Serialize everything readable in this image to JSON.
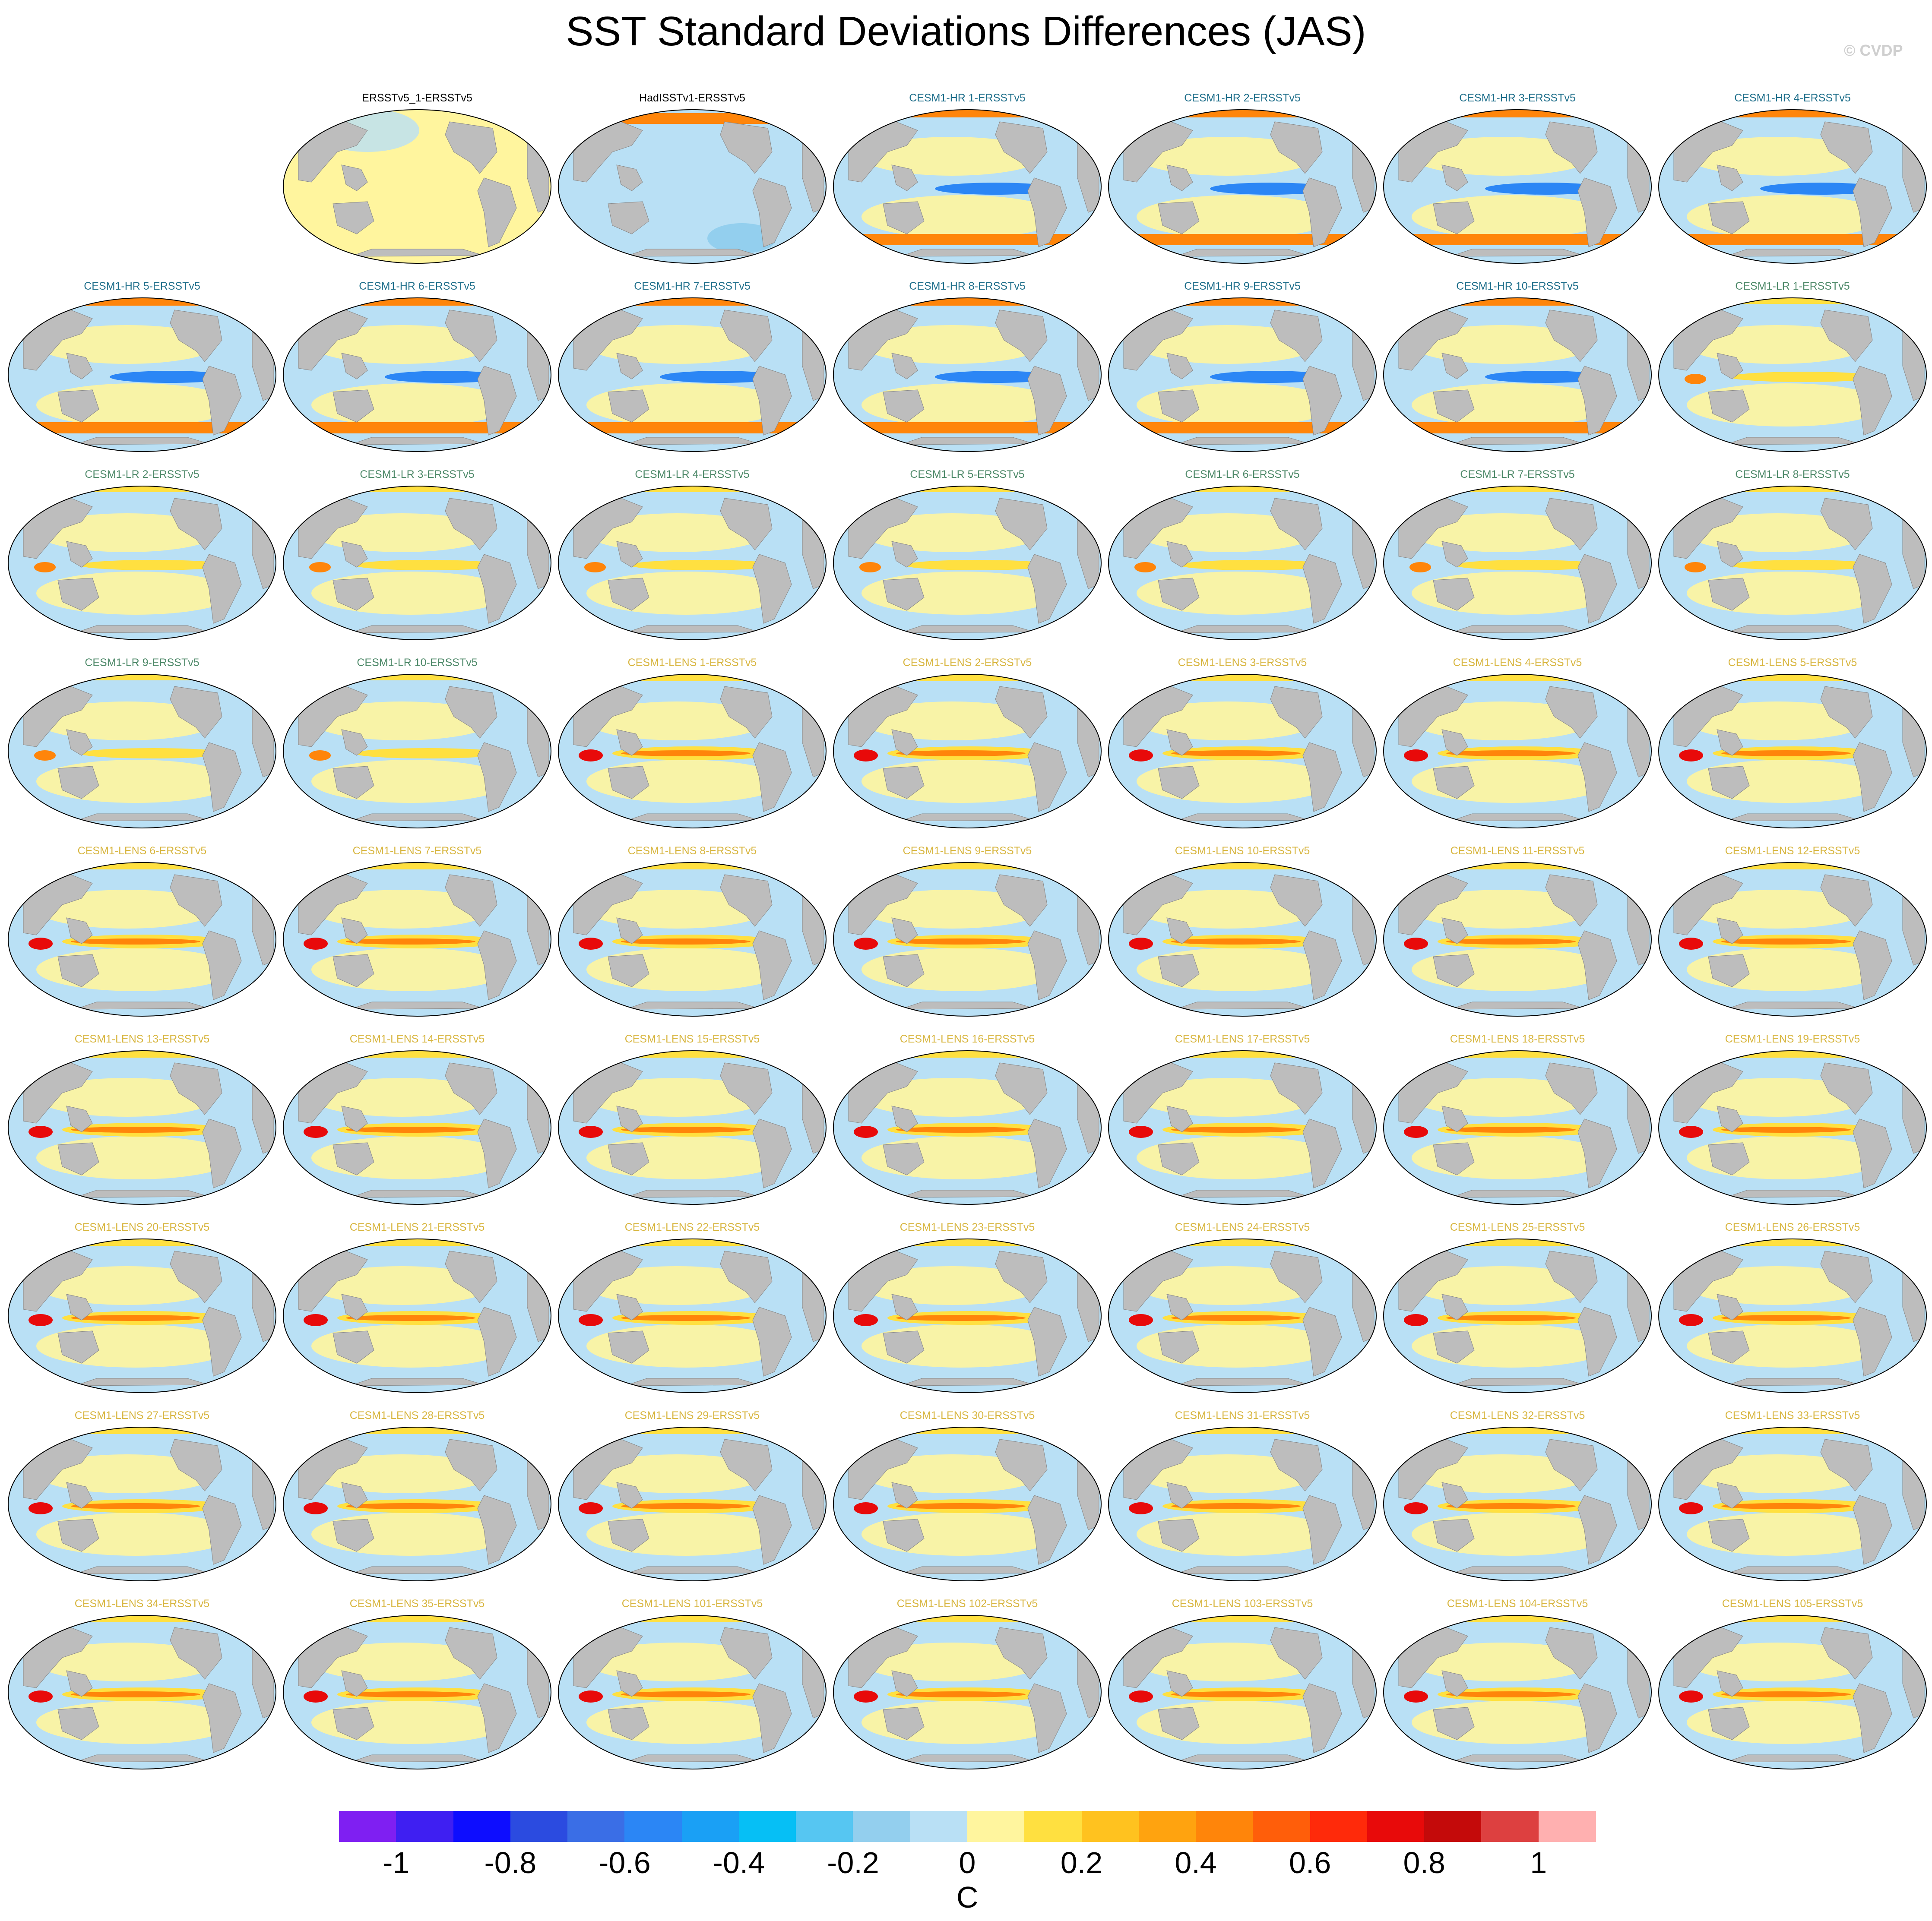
{
  "title": "SST Standard Deviations Differences (JAS)",
  "watermark": "© CVDP",
  "colors": {
    "land": "#bdbdbd",
    "ocean_base": "#b9e0f5",
    "obs_title": "#000000",
    "hr_title": "#1f6f8b",
    "lr_title": "#4f8a6a",
    "lens_title": "#d8b640"
  },
  "panels": [
    {
      "label": "ERSSTv5_1-ERSSTv5",
      "group": "obs"
    },
    {
      "label": "HadISSTv1-ERSSTv5",
      "group": "obs"
    },
    {
      "label": "CESM1-HR 1-ERSSTv5",
      "group": "hr"
    },
    {
      "label": "CESM1-HR 2-ERSSTv5",
      "group": "hr"
    },
    {
      "label": "CESM1-HR 3-ERSSTv5",
      "group": "hr"
    },
    {
      "label": "CESM1-HR 4-ERSSTv5",
      "group": "hr"
    },
    {
      "label": "CESM1-HR 5-ERSSTv5",
      "group": "hr"
    },
    {
      "label": "CESM1-HR 6-ERSSTv5",
      "group": "hr"
    },
    {
      "label": "CESM1-HR 7-ERSSTv5",
      "group": "hr"
    },
    {
      "label": "CESM1-HR 8-ERSSTv5",
      "group": "hr"
    },
    {
      "label": "CESM1-HR 9-ERSSTv5",
      "group": "hr"
    },
    {
      "label": "CESM1-HR 10-ERSSTv5",
      "group": "hr"
    },
    {
      "label": "CESM1-LR 1-ERSSTv5",
      "group": "lr"
    },
    {
      "label": "CESM1-LR 2-ERSSTv5",
      "group": "lr"
    },
    {
      "label": "CESM1-LR 3-ERSSTv5",
      "group": "lr"
    },
    {
      "label": "CESM1-LR 4-ERSSTv5",
      "group": "lr"
    },
    {
      "label": "CESM1-LR 5-ERSSTv5",
      "group": "lr"
    },
    {
      "label": "CESM1-LR 6-ERSSTv5",
      "group": "lr"
    },
    {
      "label": "CESM1-LR 7-ERSSTv5",
      "group": "lr"
    },
    {
      "label": "CESM1-LR 8-ERSSTv5",
      "group": "lr"
    },
    {
      "label": "CESM1-LR 9-ERSSTv5",
      "group": "lr"
    },
    {
      "label": "CESM1-LR 10-ERSSTv5",
      "group": "lr"
    },
    {
      "label": "CESM1-LENS 1-ERSSTv5",
      "group": "lens"
    },
    {
      "label": "CESM1-LENS 2-ERSSTv5",
      "group": "lens"
    },
    {
      "label": "CESM1-LENS 3-ERSSTv5",
      "group": "lens"
    },
    {
      "label": "CESM1-LENS 4-ERSSTv5",
      "group": "lens"
    },
    {
      "label": "CESM1-LENS 5-ERSSTv5",
      "group": "lens"
    },
    {
      "label": "CESM1-LENS 6-ERSSTv5",
      "group": "lens"
    },
    {
      "label": "CESM1-LENS 7-ERSSTv5",
      "group": "lens"
    },
    {
      "label": "CESM1-LENS 8-ERSSTv5",
      "group": "lens"
    },
    {
      "label": "CESM1-LENS 9-ERSSTv5",
      "group": "lens"
    },
    {
      "label": "CESM1-LENS 10-ERSSTv5",
      "group": "lens"
    },
    {
      "label": "CESM1-LENS 11-ERSSTv5",
      "group": "lens"
    },
    {
      "label": "CESM1-LENS 12-ERSSTv5",
      "group": "lens"
    },
    {
      "label": "CESM1-LENS 13-ERSSTv5",
      "group": "lens"
    },
    {
      "label": "CESM1-LENS 14-ERSSTv5",
      "group": "lens"
    },
    {
      "label": "CESM1-LENS 15-ERSSTv5",
      "group": "lens"
    },
    {
      "label": "CESM1-LENS 16-ERSSTv5",
      "group": "lens"
    },
    {
      "label": "CESM1-LENS 17-ERSSTv5",
      "group": "lens"
    },
    {
      "label": "CESM1-LENS 18-ERSSTv5",
      "group": "lens"
    },
    {
      "label": "CESM1-LENS 19-ERSSTv5",
      "group": "lens"
    },
    {
      "label": "CESM1-LENS 20-ERSSTv5",
      "group": "lens"
    },
    {
      "label": "CESM1-LENS 21-ERSSTv5",
      "group": "lens"
    },
    {
      "label": "CESM1-LENS 22-ERSSTv5",
      "group": "lens"
    },
    {
      "label": "CESM1-LENS 23-ERSSTv5",
      "group": "lens"
    },
    {
      "label": "CESM1-LENS 24-ERSSTv5",
      "group": "lens"
    },
    {
      "label": "CESM1-LENS 25-ERSSTv5",
      "group": "lens"
    },
    {
      "label": "CESM1-LENS 26-ERSSTv5",
      "group": "lens"
    },
    {
      "label": "CESM1-LENS 27-ERSSTv5",
      "group": "lens"
    },
    {
      "label": "CESM1-LENS 28-ERSSTv5",
      "group": "lens"
    },
    {
      "label": "CESM1-LENS 29-ERSSTv5",
      "group": "lens"
    },
    {
      "label": "CESM1-LENS 30-ERSSTv5",
      "group": "lens"
    },
    {
      "label": "CESM1-LENS 31-ERSSTv5",
      "group": "lens"
    },
    {
      "label": "CESM1-LENS 32-ERSSTv5",
      "group": "lens"
    },
    {
      "label": "CESM1-LENS 33-ERSSTv5",
      "group": "lens"
    },
    {
      "label": "CESM1-LENS 34-ERSSTv5",
      "group": "lens"
    },
    {
      "label": "CESM1-LENS 35-ERSSTv5",
      "group": "lens"
    },
    {
      "label": "CESM1-LENS 101-ERSSTv5",
      "group": "lens"
    },
    {
      "label": "CESM1-LENS 102-ERSSTv5",
      "group": "lens"
    },
    {
      "label": "CESM1-LENS 103-ERSSTv5",
      "group": "lens"
    },
    {
      "label": "CESM1-LENS 104-ERSSTv5",
      "group": "lens"
    },
    {
      "label": "CESM1-LENS 105-ERSSTv5",
      "group": "lens"
    }
  ],
  "colorbar": {
    "colors": [
      "#7f1ff2",
      "#3f1ff2",
      "#0d0dff",
      "#2b4be0",
      "#3a6ee6",
      "#2b86f5",
      "#1aa0f5",
      "#06bff5",
      "#56c6f2",
      "#93cfee",
      "#b9e0f5",
      "#fff59e",
      "#ffe040",
      "#ffc21f",
      "#ffa30f",
      "#ff850a",
      "#ff5e0a",
      "#ff2a0a",
      "#e80a0a",
      "#c40a0a",
      "#dd4040",
      "#ffb0b0"
    ],
    "tick_labels": [
      "-1",
      "-0.8",
      "-0.6",
      "-0.4",
      "-0.2",
      "0",
      "0.2",
      "0.4",
      "0.6",
      "0.8",
      "1"
    ],
    "units": "C"
  }
}
